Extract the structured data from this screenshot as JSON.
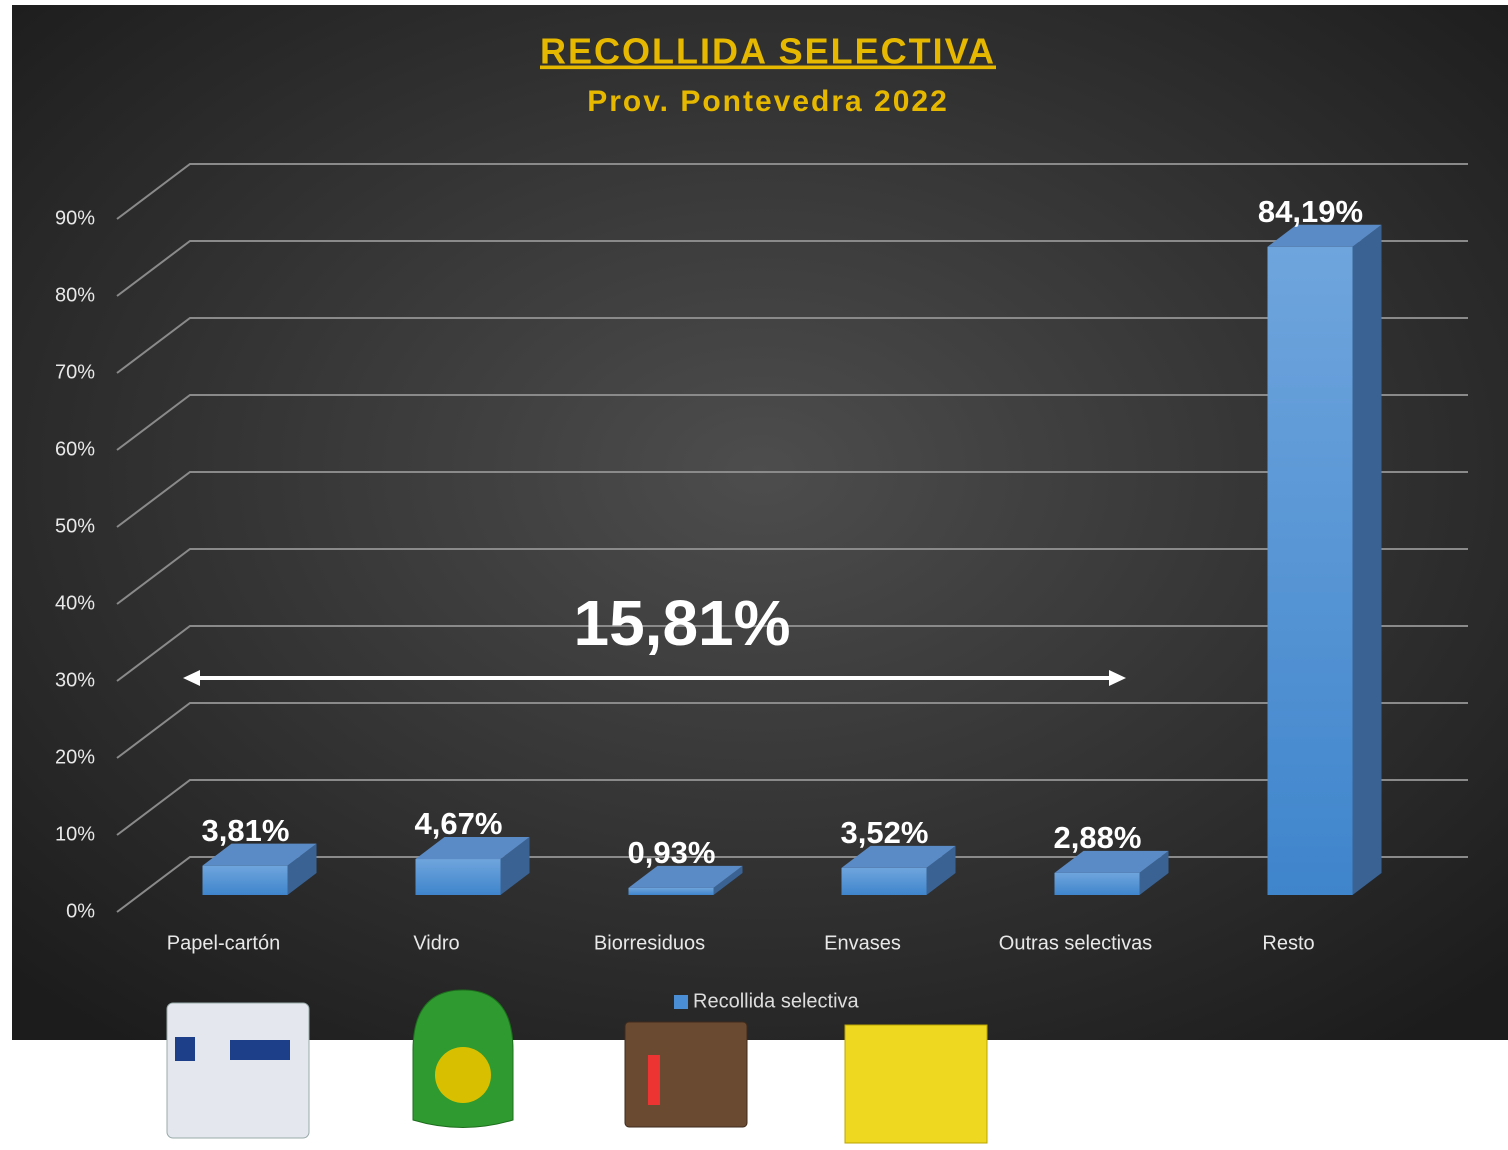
{
  "chart_data": {
    "type": "bar3d",
    "title": "RECOLLIDA SELECTIVA",
    "subtitle": "Prov. Pontevedra 2022",
    "categories": [
      "Papel-cartón",
      "Vidro",
      "Biorresiduos",
      "Envases",
      "Outras selectivas",
      "Resto"
    ],
    "series": [
      {
        "name": "Recollida selectiva",
        "color": "#4a8fd6",
        "values": [
          3.81,
          4.67,
          0.93,
          3.52,
          2.88,
          84.19
        ],
        "value_labels": [
          "3,81%",
          "4,67%",
          "0,93%",
          "3,52%",
          "2,88%",
          "84,19%"
        ]
      }
    ],
    "ylim": [
      0,
      90
    ],
    "yticks": [
      {
        "value": 0,
        "label": "0%"
      },
      {
        "value": 10,
        "label": "10%"
      },
      {
        "value": 20,
        "label": "20%"
      },
      {
        "value": 30,
        "label": "30%"
      },
      {
        "value": 40,
        "label": "40%"
      },
      {
        "value": 50,
        "label": "50%"
      },
      {
        "value": 60,
        "label": "60%"
      },
      {
        "value": 70,
        "label": "70%"
      },
      {
        "value": 80,
        "label": "80%"
      },
      {
        "value": 90,
        "label": "90%"
      }
    ],
    "grid": true,
    "annotations": [
      {
        "text": "15,81%"
      }
    ]
  }
}
